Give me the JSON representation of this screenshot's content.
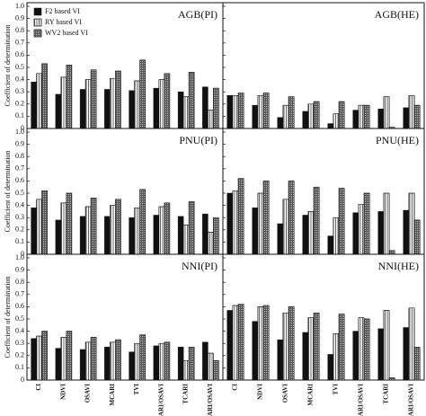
{
  "chart_data": [
    {
      "type": "bar",
      "title": "AGB(PI)",
      "ylabel": "Coefficient of determination",
      "legend": "upper left",
      "series": [
        {
          "name": "F2 based VI",
          "color": "#111111",
          "values": [
            0.38,
            0.28,
            0.32,
            0.32,
            0.31,
            0.33,
            0.3,
            0.34
          ]
        },
        {
          "name": "RY based VI",
          "color": "#ffffff",
          "values": [
            0.45,
            0.42,
            0.4,
            0.41,
            0.39,
            0.4,
            0.26,
            0.15
          ]
        },
        {
          "name": "WV2 based VI",
          "color": "#7a7a7a",
          "values": [
            0.53,
            0.52,
            0.48,
            0.47,
            0.56,
            0.45,
            0.46,
            0.33
          ]
        }
      ],
      "ylim": [
        0,
        1
      ],
      "yticks": [
        0,
        0.1,
        0.2,
        0.3,
        0.4,
        0.5,
        0.6,
        0.7,
        0.8,
        0.9,
        {
          "value": 1,
          "label": "1.0"
        }
      ]
    },
    {
      "type": "bar",
      "title": "AGB(HE)",
      "series": [
        {
          "color": "#111111",
          "values": [
            0.27,
            0.19,
            0.09,
            0.14,
            0.04,
            0.15,
            0.16,
            0.17
          ]
        },
        {
          "color": "#ffffff",
          "values": [
            0.27,
            0.27,
            0.19,
            0.2,
            0.12,
            0.19,
            0.26,
            0.27
          ]
        },
        {
          "color": "#7a7a7a",
          "values": [
            0.29,
            0.29,
            0.26,
            0.22,
            0.22,
            0.19,
            0.01,
            0.19
          ]
        }
      ],
      "ylim": [
        0,
        1
      ],
      "yticks": [
        0,
        0.1,
        0.2,
        0.3,
        0.4,
        0.5,
        0.6,
        0.7,
        0.8,
        0.9,
        1
      ]
    },
    {
      "type": "bar",
      "title": "PNU(PI)",
      "ylabel": "Coefficient of determination",
      "series": [
        {
          "color": "#111111",
          "values": [
            0.38,
            0.28,
            0.31,
            0.31,
            0.3,
            0.32,
            0.31,
            0.33
          ]
        },
        {
          "color": "#ffffff",
          "values": [
            0.45,
            0.42,
            0.39,
            0.4,
            0.38,
            0.39,
            0.24,
            0.18
          ]
        },
        {
          "color": "#7a7a7a",
          "values": [
            0.52,
            0.5,
            0.46,
            0.45,
            0.53,
            0.42,
            0.43,
            0.3
          ]
        }
      ],
      "ylim": [
        0,
        1
      ],
      "yticks": [
        0,
        0.1,
        0.2,
        0.3,
        0.4,
        0.5,
        0.6,
        0.7,
        0.8,
        0.9,
        {
          "value": 1,
          "label": "1.0"
        }
      ]
    },
    {
      "type": "bar",
      "title": "PNU(HE)",
      "series": [
        {
          "color": "#111111",
          "values": [
            0.5,
            0.38,
            0.25,
            0.32,
            0.15,
            0.34,
            0.35,
            0.36
          ]
        },
        {
          "color": "#ffffff",
          "values": [
            0.52,
            0.5,
            0.45,
            0.35,
            0.3,
            0.41,
            0.5,
            0.5
          ]
        },
        {
          "color": "#7a7a7a",
          "values": [
            0.62,
            0.6,
            0.6,
            0.55,
            0.54,
            0.5,
            0.03,
            0.28
          ]
        }
      ],
      "ylim": [
        0,
        1
      ],
      "yticks": [
        0,
        0.1,
        0.2,
        0.3,
        0.4,
        0.5,
        0.6,
        0.7,
        0.8,
        0.9,
        1
      ]
    },
    {
      "type": "bar",
      "title": "NNI(PI)",
      "ylabel": "Coefficient of determination",
      "categories": [
        "CI",
        "NDVI",
        "OSAVI",
        "MCARI",
        "TVI",
        "MCARI/OSAVI",
        "TCARI",
        "TCARI/OSAVI"
      ],
      "series": [
        {
          "color": "#111111",
          "values": [
            0.34,
            0.26,
            0.25,
            0.27,
            0.23,
            0.28,
            0.27,
            0.31
          ]
        },
        {
          "color": "#ffffff",
          "values": [
            0.36,
            0.35,
            0.31,
            0.31,
            0.3,
            0.3,
            0.16,
            0.22
          ]
        },
        {
          "color": "#7a7a7a",
          "values": [
            0.4,
            0.4,
            0.35,
            0.33,
            0.37,
            0.31,
            0.27,
            0.16
          ]
        }
      ],
      "ylim": [
        0,
        1
      ],
      "yticks": [
        0,
        0.1,
        0.2,
        0.3,
        0.4,
        0.5,
        0.6,
        0.7,
        0.8,
        0.9,
        {
          "value": 1,
          "label": "1.0"
        }
      ]
    },
    {
      "type": "bar",
      "title": "NNI(HE)",
      "categories": [
        "CI",
        "NDVI",
        "OSAVI",
        "MCARI",
        "TVI",
        "MCARI/OSAVI",
        "TCARI",
        "TCARI/OSAVI"
      ],
      "series": [
        {
          "color": "#111111",
          "values": [
            0.57,
            0.48,
            0.33,
            0.39,
            0.21,
            0.4,
            0.42,
            0.43
          ]
        },
        {
          "color": "#ffffff",
          "values": [
            0.61,
            0.6,
            0.55,
            0.51,
            0.38,
            0.51,
            0.57,
            0.59
          ]
        },
        {
          "color": "#7a7a7a",
          "values": [
            0.62,
            0.61,
            0.6,
            0.55,
            0.54,
            0.5,
            0.02,
            0.27
          ]
        }
      ],
      "ylim": [
        0,
        1
      ],
      "yticks": [
        0,
        0.1,
        0.2,
        0.3,
        0.4,
        0.5,
        0.6,
        0.7,
        0.8,
        0.9,
        1
      ]
    }
  ]
}
